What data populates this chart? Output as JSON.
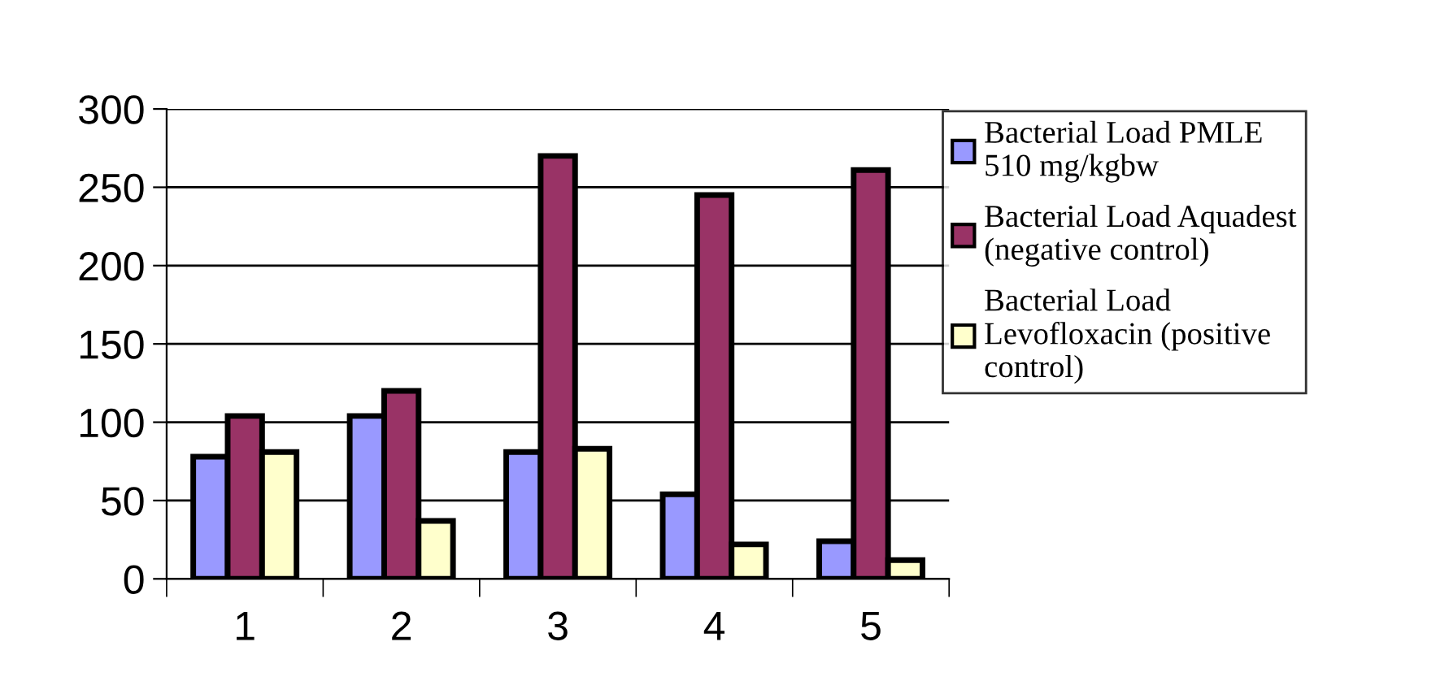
{
  "chart_data": {
    "type": "bar",
    "categories": [
      "1",
      "2",
      "3",
      "4",
      "5"
    ],
    "series": [
      {
        "name": "Bacterial Load PMLE\n510 mg/kgbw",
        "color": "#9999ff",
        "values": [
          78,
          104,
          81,
          54,
          24
        ]
      },
      {
        "name": "Bacterial Load Aquadest\n(negative control)",
        "color": "#993366",
        "values": [
          104,
          120,
          270,
          245,
          261
        ]
      },
      {
        "name": "Bacterial Load\nLevofloxacin (positive\ncontrol)",
        "color": "#ffffcc",
        "values": [
          81,
          37,
          83,
          22,
          12
        ]
      }
    ],
    "ylim": [
      0,
      300
    ],
    "yticks": [
      0,
      50,
      100,
      150,
      200,
      250,
      300
    ],
    "grid": "y",
    "legend": "right"
  }
}
